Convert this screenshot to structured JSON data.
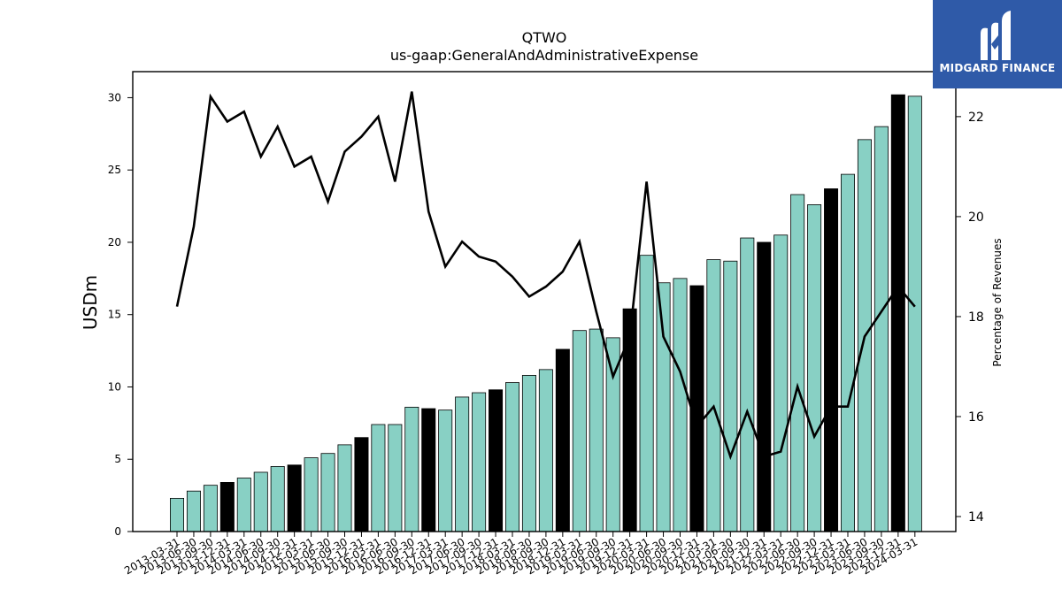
{
  "brand": {
    "name": "MIDGARD FINANCE",
    "logo_icon": "midgard-logo-icon",
    "color": "#2f5aa8"
  },
  "chart_data": {
    "type": "bar",
    "title": "QTWO",
    "subtitle": "us-gaap:GeneralAndAdministrativeExpense",
    "ylabel": "USDm",
    "y2label": "Percentage of Revenues",
    "ylim": [
      0,
      31.8
    ],
    "y2lim": [
      13.7,
      22.9
    ],
    "yticks": [
      0,
      5,
      10,
      15,
      20,
      25,
      30
    ],
    "y2ticks": [
      14,
      16,
      18,
      20,
      22
    ],
    "grid": false,
    "bar_color": "#88d0c4",
    "highlight_color": "#000000",
    "line_color": "#000000",
    "categories": [
      "2013-03-31",
      "2013-06-30",
      "2013-09-30",
      "2013-12-31",
      "2014-03-31",
      "2014-06-30",
      "2014-09-30",
      "2014-12-31",
      "2015-03-31",
      "2015-06-30",
      "2015-09-30",
      "2015-12-31",
      "2016-03-31",
      "2016-06-30",
      "2016-09-30",
      "2016-12-31",
      "2017-03-31",
      "2017-06-30",
      "2017-09-30",
      "2017-12-31",
      "2018-03-31",
      "2018-06-30",
      "2018-09-30",
      "2018-12-31",
      "2019-03-31",
      "2019-06-30",
      "2019-09-30",
      "2019-12-31",
      "2020-03-31",
      "2020-06-30",
      "2020-09-30",
      "2020-12-31",
      "2021-03-31",
      "2021-06-30",
      "2021-09-30",
      "2021-12-31",
      "2022-03-31",
      "2022-06-30",
      "2022-09-30",
      "2022-12-31",
      "2023-03-31",
      "2023-06-30",
      "2023-09-30",
      "2023-12-31",
      "2024-03-31"
    ],
    "series": [
      {
        "type": "bar",
        "values": [
          2.3,
          2.8,
          3.2,
          3.4,
          3.7,
          4.1,
          4.5,
          4.6,
          5.1,
          5.4,
          6.0,
          6.5,
          7.4,
          7.4,
          8.6,
          8.5,
          8.4,
          9.3,
          9.6,
          9.8,
          10.3,
          10.8,
          11.2,
          12.6,
          13.9,
          14.0,
          13.4,
          15.4,
          19.1,
          17.2,
          17.5,
          17.0,
          18.8,
          18.7,
          20.3,
          20.0,
          20.5,
          23.3,
          22.6,
          23.7,
          24.7,
          27.1,
          28.0,
          30.2,
          30.1
        ],
        "highlight": [
          false,
          false,
          false,
          true,
          false,
          false,
          false,
          true,
          false,
          false,
          false,
          true,
          false,
          false,
          false,
          true,
          false,
          false,
          false,
          true,
          false,
          false,
          false,
          true,
          false,
          false,
          false,
          true,
          false,
          false,
          false,
          true,
          false,
          false,
          false,
          true,
          false,
          false,
          false,
          true,
          false,
          false,
          false,
          true,
          false
        ]
      },
      {
        "type": "line",
        "axis": "right",
        "values": [
          18.2,
          19.8,
          22.4,
          21.9,
          22.1,
          21.2,
          21.8,
          21.0,
          21.2,
          20.3,
          21.3,
          21.6,
          22.0,
          20.7,
          22.5,
          20.1,
          19.0,
          19.5,
          19.2,
          19.1,
          18.8,
          18.4,
          18.6,
          18.9,
          19.5,
          18.1,
          16.8,
          17.6,
          20.7,
          17.6,
          16.9,
          15.8,
          16.2,
          15.2,
          16.1,
          15.2,
          15.3,
          16.6,
          15.6,
          16.2,
          16.2,
          17.6,
          18.1,
          18.6,
          18.2
        ]
      }
    ]
  }
}
